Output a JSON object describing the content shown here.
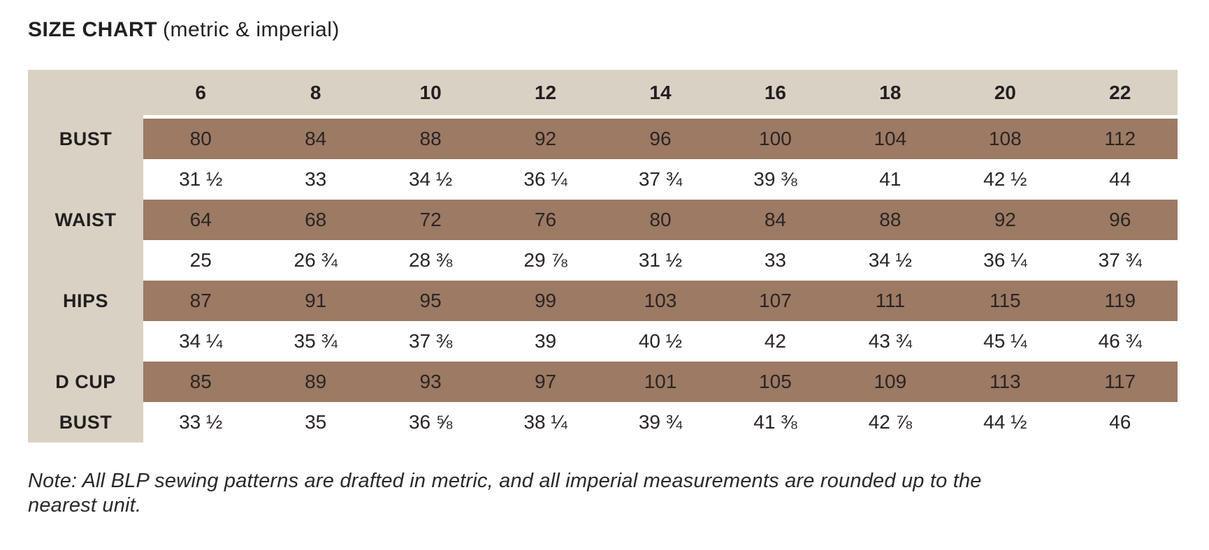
{
  "page": {
    "title": "SIZE CHART",
    "subtitle": "(metric & imperial)",
    "note": "Note: All BLP sewing patterns are drafted in metric, and all imperial measurements are rounded up to the nearest unit."
  },
  "colors": {
    "beige": "#d9d2c4",
    "brown": "#9c7a63",
    "text": "#26211f"
  },
  "chart_data": {
    "type": "table",
    "title": "SIZE CHART (metric & imperial)",
    "column_headers": [
      "6",
      "8",
      "10",
      "12",
      "14",
      "16",
      "18",
      "20",
      "22"
    ],
    "rows": [
      {
        "label": "BUST",
        "unit": "metric-cm",
        "shade": "brown",
        "values": [
          "80",
          "84",
          "88",
          "92",
          "96",
          "100",
          "104",
          "108",
          "112"
        ]
      },
      {
        "label": "",
        "unit": "imperial-in",
        "shade": "white",
        "values": [
          "31 ½",
          "33",
          "34 ½",
          "36 ¼",
          "37 ¾",
          "39 ⅜",
          "41",
          "42 ½",
          "44"
        ]
      },
      {
        "label": "WAIST",
        "unit": "metric-cm",
        "shade": "brown",
        "values": [
          "64",
          "68",
          "72",
          "76",
          "80",
          "84",
          "88",
          "92",
          "96"
        ]
      },
      {
        "label": "",
        "unit": "imperial-in",
        "shade": "white",
        "values": [
          "25",
          "26 ¾",
          "28 ⅜",
          "29 ⅞",
          "31 ½",
          "33",
          "34 ½",
          "36 ¼",
          "37 ¾"
        ]
      },
      {
        "label": "HIPS",
        "unit": "metric-cm",
        "shade": "brown",
        "values": [
          "87",
          "91",
          "95",
          "99",
          "103",
          "107",
          "111",
          "115",
          "119"
        ]
      },
      {
        "label": "",
        "unit": "imperial-in",
        "shade": "white",
        "values": [
          "34 ¼",
          "35 ¾",
          "37 ⅜",
          "39",
          "40 ½",
          "42",
          "43 ¾",
          "45 ¼",
          "46 ¾"
        ]
      },
      {
        "label": "D CUP",
        "unit": "metric-cm",
        "shade": "brown",
        "values": [
          "85",
          "89",
          "93",
          "97",
          "101",
          "105",
          "109",
          "113",
          "117"
        ]
      },
      {
        "label": "BUST",
        "unit": "imperial-in",
        "shade": "white",
        "values": [
          "33 ½",
          "35",
          "36 ⅝",
          "38 ¼",
          "39 ¾",
          "41 ⅜",
          "42 ⅞",
          "44 ½",
          "46"
        ]
      }
    ],
    "note": "Note: All BLP sewing patterns are drafted in metric, and all imperial measurements are rounded up to the nearest unit."
  }
}
